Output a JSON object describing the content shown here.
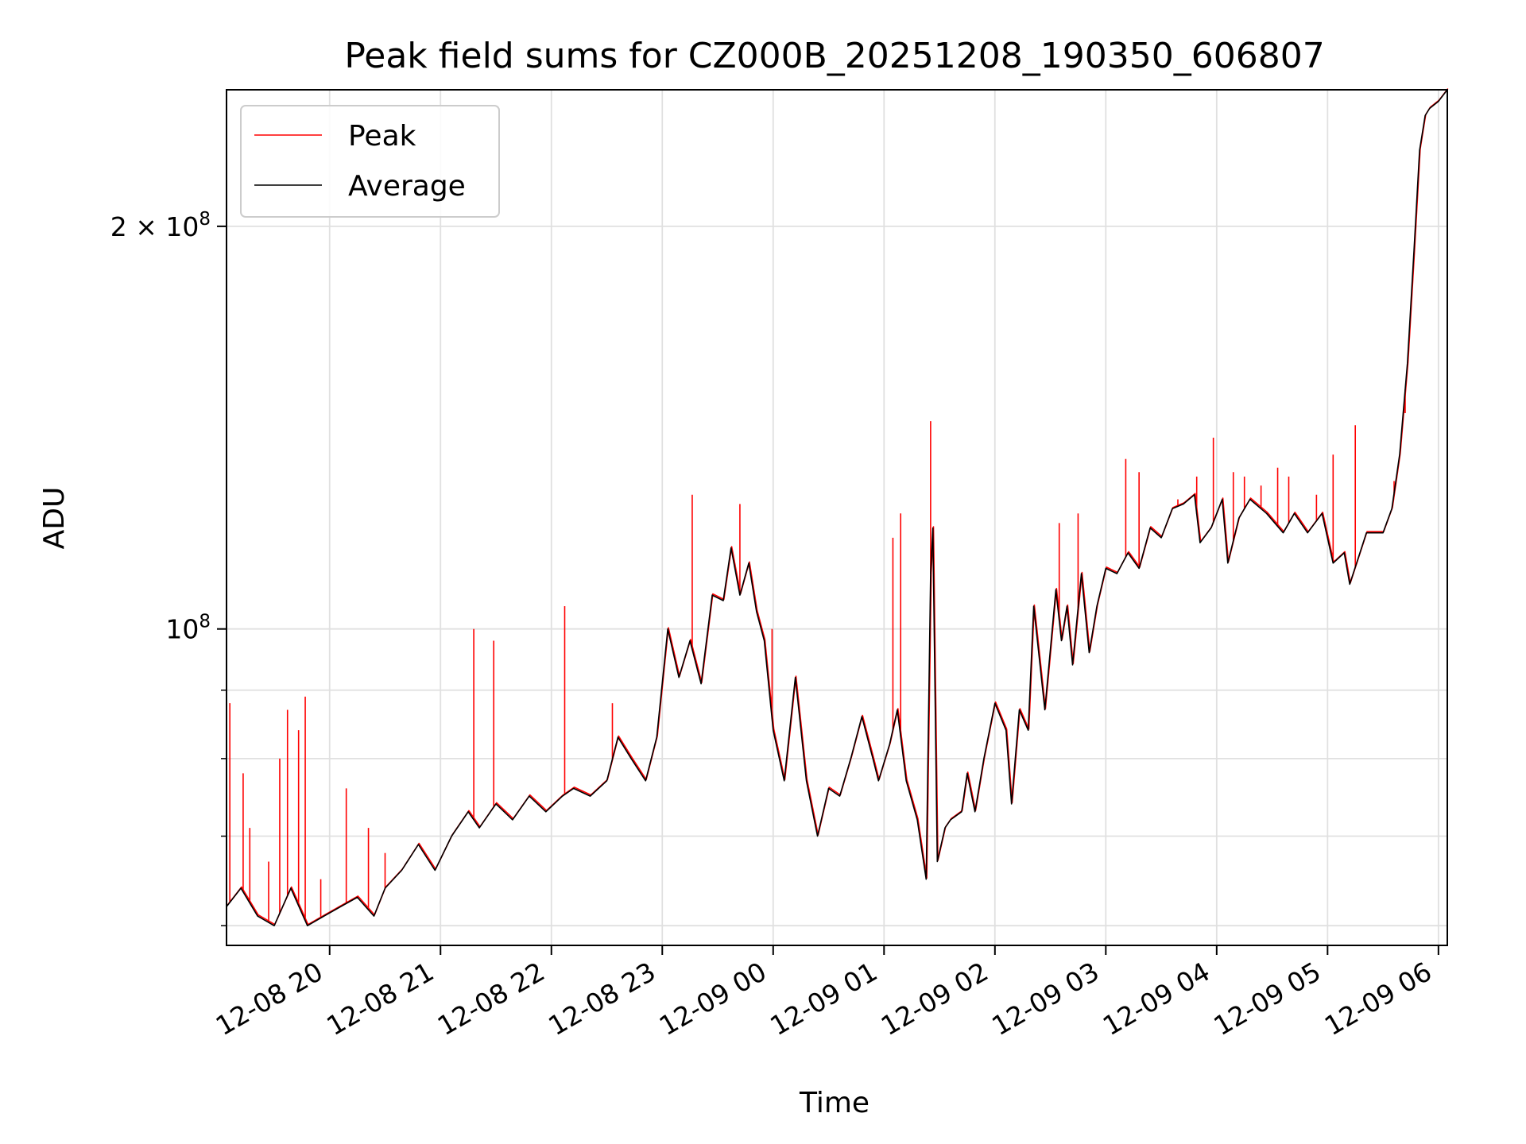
{
  "chart_data": {
    "type": "line",
    "title": "Peak field sums for CZ000B_20251208_190350_606807",
    "xlabel": "Time",
    "ylabel": "ADU",
    "yscale": "log",
    "ylim": [
      58000000,
      253000000
    ],
    "xlim_hours": [
      19.07,
      30.08
    ],
    "grid": true,
    "legend_position": "top-left",
    "x_ticks": [
      {
        "label": "12-08 20",
        "value": 20
      },
      {
        "label": "12-08 21",
        "value": 21
      },
      {
        "label": "12-08 22",
        "value": 22
      },
      {
        "label": "12-08 23",
        "value": 23
      },
      {
        "label": "12-09 00",
        "value": 24
      },
      {
        "label": "12-09 01",
        "value": 25
      },
      {
        "label": "12-09 02",
        "value": 26
      },
      {
        "label": "12-09 03",
        "value": 27
      },
      {
        "label": "12-09 04",
        "value": 28
      },
      {
        "label": "12-09 05",
        "value": 29
      },
      {
        "label": "12-09 06",
        "value": 30
      }
    ],
    "y_ticks_major": [
      {
        "label_base": "2 × 10",
        "label_exp": "8",
        "value": 200000000
      },
      {
        "label_base": "10",
        "label_exp": "8",
        "value": 100000000
      }
    ],
    "y_ticks_minor": [
      60000000,
      70000000,
      80000000,
      90000000
    ],
    "series": [
      {
        "name": "Average",
        "color": "#000000",
        "x": [
          19.07,
          19.2,
          19.35,
          19.5,
          19.65,
          19.8,
          19.95,
          20.1,
          20.25,
          20.4,
          20.5,
          20.65,
          20.8,
          20.95,
          21.1,
          21.25,
          21.35,
          21.5,
          21.65,
          21.8,
          21.95,
          22.1,
          22.2,
          22.35,
          22.5,
          22.6,
          22.72,
          22.85,
          22.95,
          23.05,
          23.15,
          23.25,
          23.35,
          23.45,
          23.55,
          23.62,
          23.7,
          23.78,
          23.85,
          23.92,
          24.0,
          24.1,
          24.2,
          24.3,
          24.4,
          24.5,
          24.6,
          24.7,
          24.8,
          24.9,
          24.95,
          25.05,
          25.12,
          25.2,
          25.3,
          25.38,
          25.42,
          25.44,
          25.48,
          25.55,
          25.6,
          25.7,
          25.75,
          25.82,
          25.9,
          26.0,
          26.1,
          26.15,
          26.22,
          26.3,
          26.35,
          26.45,
          26.55,
          26.6,
          26.65,
          26.7,
          26.78,
          26.85,
          26.92,
          27.0,
          27.1,
          27.2,
          27.3,
          27.4,
          27.5,
          27.6,
          27.7,
          27.8,
          27.85,
          27.95,
          28.05,
          28.1,
          28.2,
          28.3,
          28.45,
          28.6,
          28.7,
          28.82,
          28.95,
          29.05,
          29.15,
          29.2,
          29.35,
          29.5,
          29.58,
          29.65,
          29.72,
          29.78,
          29.83,
          29.88,
          29.92,
          30.0,
          30.08
        ],
        "values": [
          62000000,
          64000000,
          61000000,
          60000000,
          64000000,
          60000000,
          61000000,
          62000000,
          63000000,
          61000000,
          64000000,
          66000000,
          69000000,
          66000000,
          70000000,
          73000000,
          71000000,
          74000000,
          72000000,
          75000000,
          73000000,
          75000000,
          76000000,
          75000000,
          77000000,
          83000000,
          80000000,
          77000000,
          83000000,
          100000000,
          92000000,
          98000000,
          91000000,
          106000000,
          105000000,
          115000000,
          106000000,
          112000000,
          103000000,
          98000000,
          84000000,
          77000000,
          92000000,
          77000000,
          70000000,
          76000000,
          75000000,
          80000000,
          86000000,
          80000000,
          77000000,
          82000000,
          87000000,
          77000000,
          72000000,
          65000000,
          110000000,
          119000000,
          67000000,
          71000000,
          72000000,
          73000000,
          78000000,
          73000000,
          80000000,
          88000000,
          84000000,
          74000000,
          87000000,
          84000000,
          104000000,
          87000000,
          107000000,
          98000000,
          104000000,
          94000000,
          110000000,
          96000000,
          104000000,
          111000000,
          110000000,
          114000000,
          111000000,
          119000000,
          117000000,
          123000000,
          124000000,
          126000000,
          116000000,
          119000000,
          125000000,
          112000000,
          121000000,
          125000000,
          122000000,
          118000000,
          122000000,
          118000000,
          122000000,
          112000000,
          114000000,
          108000000,
          118000000,
          118000000,
          123000000,
          135000000,
          158000000,
          192000000,
          228000000,
          242000000,
          245000000,
          248000000,
          253000000
        ]
      },
      {
        "name": "Peak",
        "color": "#ff0000",
        "x": [
          19.1,
          19.22,
          19.28,
          19.45,
          19.55,
          19.62,
          19.72,
          19.78,
          19.92,
          20.15,
          20.35,
          20.5,
          21.3,
          21.48,
          22.12,
          22.55,
          23.27,
          23.7,
          23.99,
          25.08,
          25.15,
          25.42,
          26.58,
          26.75,
          27.18,
          27.3,
          27.65,
          27.82,
          27.97,
          28.15,
          28.25,
          28.4,
          28.55,
          28.65,
          28.9,
          29.05,
          29.25,
          29.6,
          29.7
        ],
        "values": [
          88000000,
          78000000,
          71000000,
          67000000,
          80000000,
          87000000,
          84000000,
          89000000,
          65000000,
          76000000,
          71000000,
          68000000,
          100000000,
          98000000,
          104000000,
          88000000,
          126000000,
          124000000,
          100000000,
          117000000,
          122000000,
          143000000,
          120000000,
          122000000,
          134000000,
          131000000,
          125000000,
          130000000,
          139000000,
          131000000,
          130000000,
          128000000,
          132000000,
          130000000,
          126000000,
          135000000,
          142000000,
          129000000,
          145000000
        ]
      }
    ]
  }
}
